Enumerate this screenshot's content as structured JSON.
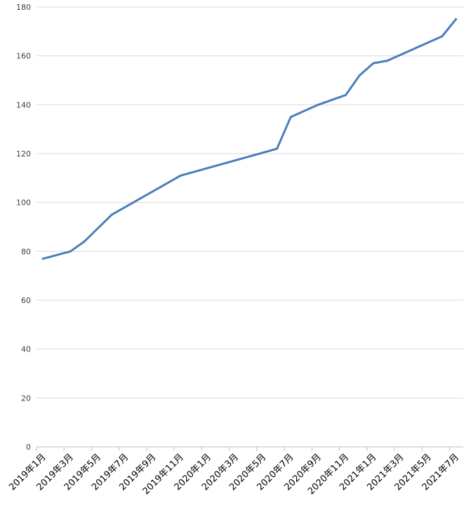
{
  "chart_data": {
    "type": "line",
    "title": "",
    "xlabel": "",
    "ylabel": "",
    "ylim": [
      0,
      180
    ],
    "y_ticks": [
      0,
      20,
      40,
      60,
      80,
      100,
      120,
      140,
      160,
      180
    ],
    "x_tick_labels": [
      "2019年1月",
      "2019年3月",
      "2019年5月",
      "2019年7月",
      "2019年9月",
      "2019年11月",
      "2020年1月",
      "2020年3月",
      "2020年5月",
      "2020年7月",
      "2020年9月",
      "2020年11月",
      "2021年1月",
      "2021年3月",
      "2021年5月",
      "2021年7月"
    ],
    "grid": "horizontal",
    "legend": "none",
    "series": [
      {
        "color": "#4a7ebb",
        "points": [
          {
            "x": "2019-01-15",
            "y": 77
          },
          {
            "x": "2019-03-15",
            "y": 80
          },
          {
            "x": "2019-04-15",
            "y": 84
          },
          {
            "x": "2019-06-15",
            "y": 95
          },
          {
            "x": "2019-11-15",
            "y": 111
          },
          {
            "x": "2020-06-15",
            "y": 122
          },
          {
            "x": "2020-07-15",
            "y": 135
          },
          {
            "x": "2020-09-15",
            "y": 140
          },
          {
            "x": "2020-11-15",
            "y": 144
          },
          {
            "x": "2020-12-15",
            "y": 152
          },
          {
            "x": "2021-01-15",
            "y": 157
          },
          {
            "x": "2021-02-15",
            "y": 158
          },
          {
            "x": "2021-06-15",
            "y": 168
          },
          {
            "x": "2021-07-15",
            "y": 175
          }
        ]
      }
    ]
  }
}
